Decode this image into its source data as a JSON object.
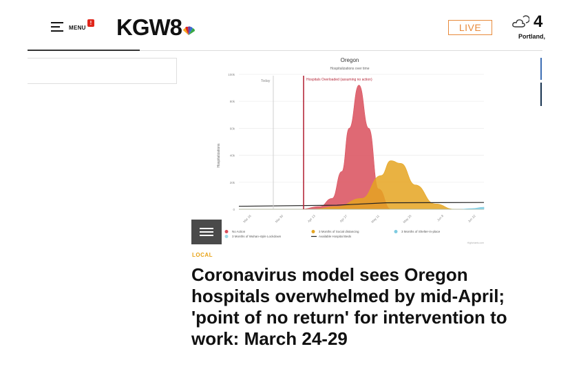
{
  "header": {
    "menu_label": "MENU",
    "menu_badge": "!",
    "logo": "KGW8",
    "live_label": "LIVE",
    "temperature": "4",
    "city": "Portland,"
  },
  "article": {
    "section": "LOCAL",
    "headline": "Coronavirus model sees Oregon hospitals overwhelmed by mid-April; 'point of no return' for intervention to work: March 24-29"
  },
  "chart_data": {
    "type": "area",
    "title": "Oregon",
    "subtitle": "Hospitalizations over time",
    "xlabel": "",
    "ylabel": "Hospitalizations",
    "y_ticks": [
      "0",
      "20k",
      "40k",
      "60k",
      "80k",
      "100k"
    ],
    "ylim": [
      0,
      100000
    ],
    "x_ticks": [
      "Mar 16",
      "Mar 30",
      "Apr 13",
      "Apr 27",
      "May 11",
      "May 25",
      "Jun 8",
      "Jun 22"
    ],
    "annotations": {
      "today": "Today",
      "overloaded": "Hospitals Overloaded (assuming no action)"
    },
    "legend": [
      {
        "label": "No Action",
        "color": "#d94f5c"
      },
      {
        "label": "3 Months of Social distancing",
        "color": "#e5a521"
      },
      {
        "label": "3 Months of Shelter-in-place",
        "color": "#7ecbe0"
      },
      {
        "label": "3 Months of Wuhan-style Lockdown",
        "color": "#9fd8e6"
      },
      {
        "label": "Available Hospital Beds",
        "color": "#222222"
      }
    ],
    "credit": "Highcharts.com",
    "series": [
      {
        "name": "No Action",
        "x_pos": [
          0.0,
          0.25,
          0.33,
          0.38,
          0.42,
          0.45,
          0.49,
          0.53,
          0.57,
          0.62,
          1.0
        ],
        "values": [
          0,
          0,
          2000,
          8000,
          28000,
          60000,
          92000,
          60000,
          15000,
          0,
          0
        ]
      },
      {
        "name": "3 Months of Social distancing",
        "x_pos": [
          0.0,
          0.3,
          0.4,
          0.5,
          0.58,
          0.62,
          0.66,
          0.72,
          0.8,
          0.88,
          1.0
        ],
        "values": [
          0,
          0,
          2000,
          8000,
          25000,
          36000,
          34000,
          18000,
          4000,
          0,
          0
        ]
      },
      {
        "name": "3 Months of Shelter-in-place",
        "x_pos": [
          0.0,
          0.9,
          0.95,
          1.0
        ],
        "values": [
          0,
          0,
          500,
          1500
        ]
      },
      {
        "name": "Available Hospital Beds",
        "x_pos": [
          0.0,
          0.4,
          0.6,
          1.0
        ],
        "values": [
          2200,
          3000,
          4800,
          5000
        ]
      }
    ]
  }
}
